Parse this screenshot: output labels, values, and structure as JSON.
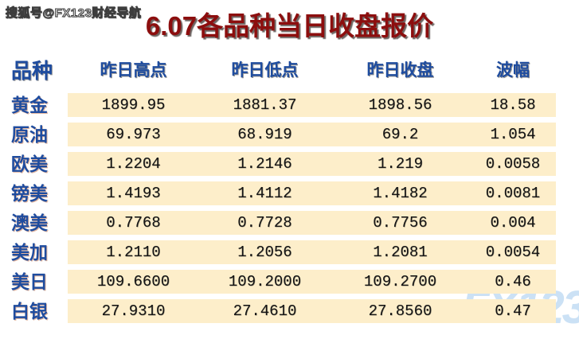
{
  "watermark_top": "搜狐号@FX123财经导航",
  "watermark_bottom": "FX123",
  "title": "6.07各品种当日收盘报价",
  "colors": {
    "title_red": "#8c0e0e",
    "header_blue": "#1e4c9f",
    "row_background_cream": "#fdeeca",
    "watermark_light_blue": "#cbe1f5",
    "number_black": "#141414"
  },
  "table": {
    "columns": [
      "品种",
      "昨日高点",
      "昨日低点",
      "昨日收盘",
      "波幅"
    ],
    "rows": [
      {
        "name": "黄金",
        "high": "1899.95",
        "low": "1881.37",
        "close": "1898.56",
        "range": "18.58"
      },
      {
        "name": "原油",
        "high": "69.973",
        "low": "68.919",
        "close": "69.2",
        "range": "1.054"
      },
      {
        "name": "欧美",
        "high": "1.2204",
        "low": "1.2146",
        "close": "1.219",
        "range": "0.0058"
      },
      {
        "name": "镑美",
        "high": "1.4193",
        "low": "1.4112",
        "close": "1.4182",
        "range": "0.0081"
      },
      {
        "name": "澳美",
        "high": "0.7768",
        "low": "0.7728",
        "close": "0.7756",
        "range": "0.004"
      },
      {
        "name": "美加",
        "high": "1.2110",
        "low": "1.2056",
        "close": "1.2081",
        "range": "0.0054"
      },
      {
        "name": "美日",
        "high": "109.6600",
        "low": "109.2000",
        "close": "109.2700",
        "range": "0.46"
      },
      {
        "name": "白银",
        "high": "27.9310",
        "low": "27.4610",
        "close": "27.8560",
        "range": "0.47"
      }
    ]
  },
  "chart_data": {
    "type": "table",
    "title": "6.07各品种当日收盘报价",
    "columns": [
      "品种",
      "昨日高点",
      "昨日低点",
      "昨日收盘",
      "波幅"
    ],
    "rows": [
      [
        "黄金",
        1899.95,
        1881.37,
        1898.56,
        18.58
      ],
      [
        "原油",
        69.973,
        68.919,
        69.2,
        1.054
      ],
      [
        "欧美",
        1.2204,
        1.2146,
        1.219,
        0.0058
      ],
      [
        "镑美",
        1.4193,
        1.4112,
        1.4182,
        0.0081
      ],
      [
        "澳美",
        0.7768,
        0.7728,
        0.7756,
        0.004
      ],
      [
        "美加",
        1.211,
        1.2056,
        1.2081,
        0.0054
      ],
      [
        "美日",
        109.66,
        109.2,
        109.27,
        0.46
      ],
      [
        "白银",
        27.931,
        27.461,
        27.856,
        0.47
      ]
    ]
  }
}
